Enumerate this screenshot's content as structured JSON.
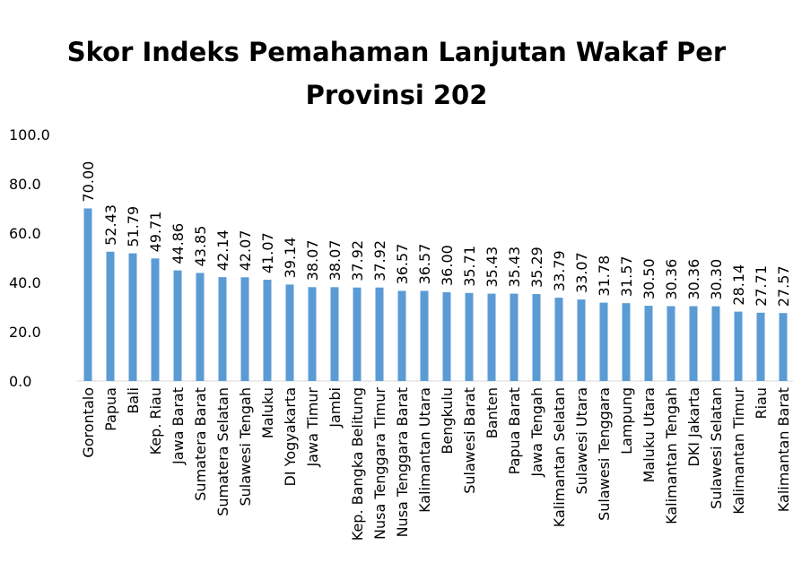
{
  "chart_data": {
    "type": "bar",
    "title": "Skor Indeks Pemahaman Lanjutan Wakaf Per Provinsi 202",
    "categories": [
      "Gorontalo",
      "Papua",
      "Bali",
      "Kep. Riau",
      "Jawa Barat",
      "Sumatera Barat",
      "Sumatera Selatan",
      "Sulawesi Tengah",
      "Maluku",
      "DI Yogyakarta",
      "Jawa Timur",
      "Jambi",
      "Kep. Bangka Belitung",
      "Nusa Tenggara Timur",
      "Nusa Tenggara Barat",
      "Kalimantan Utara",
      "Bengkulu",
      "Sulawesi Barat",
      "Banten",
      "Papua Barat",
      "Jawa Tengah",
      "Kalimantan Selatan",
      "Sulawesi Utara",
      "Sulawesi Tenggara",
      "Lampung",
      "Maluku Utara",
      "Kalimantan Tengah",
      "DKI Jakarta",
      "Sulawesi Selatan",
      "Kalimantan Timur",
      "Riau",
      "Kalimantan Barat"
    ],
    "values": [
      70.0,
      52.43,
      51.79,
      49.71,
      44.86,
      43.85,
      42.14,
      42.07,
      41.07,
      39.14,
      38.07,
      38.07,
      37.92,
      37.92,
      36.57,
      36.57,
      36.0,
      35.71,
      35.43,
      35.43,
      35.29,
      33.79,
      33.07,
      31.78,
      31.57,
      30.5,
      30.36,
      30.36,
      30.3,
      28.14,
      27.71,
      27.57
    ],
    "value_labels": [
      "70.00",
      "52.43",
      "51.79",
      "49.71",
      "44.86",
      "43.85",
      "42.14",
      "42.07",
      "41.07",
      "39.14",
      "38.07",
      "38.07",
      "37.92",
      "37.92",
      "36.57",
      "36.57",
      "36.00",
      "35.71",
      "35.43",
      "35.43",
      "35.29",
      "33.79",
      "33.07",
      "31.78",
      "31.57",
      "30.50",
      "30.36",
      "30.36",
      "30.30",
      "28.14",
      "27.71",
      "27.57"
    ],
    "color": "#5b9bd5",
    "ylim": [
      0,
      100
    ],
    "yticks": [
      {
        "value": 0,
        "label": "0.0"
      },
      {
        "value": 20,
        "label": "20.0"
      },
      {
        "value": 40,
        "label": "40.0"
      },
      {
        "value": 60,
        "label": "60.0"
      },
      {
        "value": 80,
        "label": "80.0"
      },
      {
        "value": 100,
        "label": "100.0"
      }
    ],
    "grid": false
  }
}
